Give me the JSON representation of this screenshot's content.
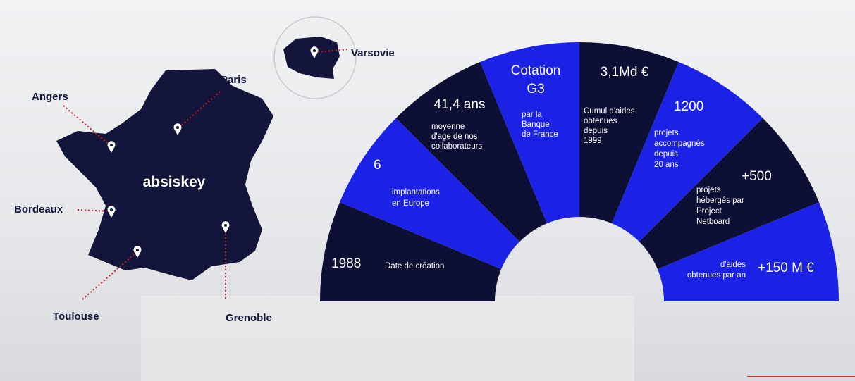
{
  "map": {
    "logo": "absiskey",
    "cities": [
      "Angers",
      "Paris",
      "Bordeaux",
      "Toulouse",
      "Grenoble",
      "Varsovie"
    ]
  },
  "segments": [
    {
      "headline": [
        "1988"
      ],
      "lines": [
        "Date de création"
      ]
    },
    {
      "headline": [
        "6"
      ],
      "lines": [
        "implantations",
        "en Europe"
      ]
    },
    {
      "headline": [
        "41,4 ans"
      ],
      "lines": [
        "moyenne",
        "d'age de nos",
        "collaborateurs"
      ]
    },
    {
      "headline": [
        "Cotation",
        "G3"
      ],
      "lines": [
        "par la",
        "Banque",
        "de France"
      ]
    },
    {
      "headline": [
        "3,1Md €"
      ],
      "lines": [
        "Cumul d'aides",
        "obtenues",
        "depuis",
        "1999"
      ]
    },
    {
      "headline": [
        "1200"
      ],
      "lines": [
        "projets",
        "accompagnés",
        "depuis",
        "20 ans"
      ]
    },
    {
      "headline": [
        "+500"
      ],
      "lines": [
        "projets",
        "hébergés par",
        "Project",
        "Netboard"
      ]
    },
    {
      "headline": [
        "+150 M €"
      ],
      "lines": [
        "d'aides",
        "obtenues par an"
      ]
    }
  ]
}
